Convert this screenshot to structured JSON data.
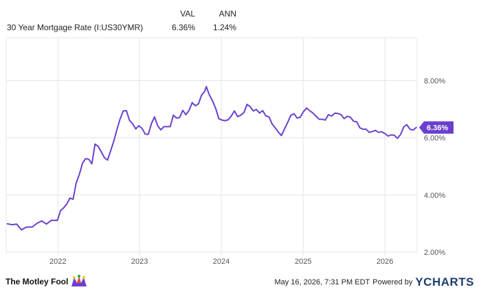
{
  "header": {
    "col_val": "VAL",
    "col_ann": "ANN",
    "series_label": "30 Year Mortgage Rate (I:US30YMR)",
    "val": "6.36%",
    "ann": "1.24%"
  },
  "footer": {
    "brand": "The Motley Fool",
    "timestamp": "May 16, 2026, 7:31 PM EDT",
    "powered_by": "Powered by",
    "ycharts": "YCHARTS"
  },
  "colors": {
    "line": "#6a3fcf",
    "grid": "#e3e3e3",
    "badge": "#6a3fcf"
  },
  "chart_data": {
    "type": "line",
    "title": "30 Year Mortgage Rate (I:US30YMR)",
    "x_ticks": [
      "2022",
      "2023",
      "2024",
      "2025",
      "2026"
    ],
    "y_ticks": [
      "2.00%",
      "4.00%",
      "6.00%",
      "8.00%"
    ],
    "ylim": [
      2.0,
      9.5
    ],
    "xlim": [
      "2021-05-15",
      "2026-05-25"
    ],
    "grid": true,
    "last_value_label": "6.36%",
    "series": [
      {
        "points": [
          [
            "2021-05-20",
            2.99
          ],
          [
            "2021-06-10",
            2.96
          ],
          [
            "2021-07-01",
            2.98
          ],
          [
            "2021-07-22",
            2.78
          ],
          [
            "2021-08-12",
            2.87
          ],
          [
            "2021-09-09",
            2.88
          ],
          [
            "2021-09-30",
            3.01
          ],
          [
            "2021-10-21",
            3.09
          ],
          [
            "2021-11-11",
            2.98
          ],
          [
            "2021-12-02",
            3.11
          ],
          [
            "2021-12-30",
            3.11
          ],
          [
            "2022-01-13",
            3.45
          ],
          [
            "2022-01-27",
            3.55
          ],
          [
            "2022-02-10",
            3.69
          ],
          [
            "2022-02-24",
            3.89
          ],
          [
            "2022-03-10",
            3.85
          ],
          [
            "2022-03-24",
            4.42
          ],
          [
            "2022-04-07",
            4.72
          ],
          [
            "2022-04-21",
            5.11
          ],
          [
            "2022-05-05",
            5.27
          ],
          [
            "2022-05-19",
            5.25
          ],
          [
            "2022-06-02",
            5.09
          ],
          [
            "2022-06-16",
            5.78
          ],
          [
            "2022-06-30",
            5.7
          ],
          [
            "2022-07-14",
            5.51
          ],
          [
            "2022-07-28",
            5.3
          ],
          [
            "2022-08-11",
            5.22
          ],
          [
            "2022-08-25",
            5.55
          ],
          [
            "2022-09-08",
            5.89
          ],
          [
            "2022-09-22",
            6.29
          ],
          [
            "2022-10-06",
            6.66
          ],
          [
            "2022-10-20",
            6.94
          ],
          [
            "2022-11-03",
            6.95
          ],
          [
            "2022-11-17",
            6.61
          ],
          [
            "2022-12-01",
            6.49
          ],
          [
            "2022-12-15",
            6.31
          ],
          [
            "2022-12-29",
            6.42
          ],
          [
            "2023-01-12",
            6.33
          ],
          [
            "2023-01-26",
            6.13
          ],
          [
            "2023-02-09",
            6.12
          ],
          [
            "2023-02-23",
            6.5
          ],
          [
            "2023-03-09",
            6.73
          ],
          [
            "2023-03-23",
            6.42
          ],
          [
            "2023-04-06",
            6.28
          ],
          [
            "2023-04-20",
            6.39
          ],
          [
            "2023-05-04",
            6.39
          ],
          [
            "2023-05-18",
            6.39
          ],
          [
            "2023-06-01",
            6.79
          ],
          [
            "2023-06-15",
            6.69
          ],
          [
            "2023-06-29",
            6.71
          ],
          [
            "2023-07-13",
            6.96
          ],
          [
            "2023-07-27",
            6.81
          ],
          [
            "2023-08-10",
            6.96
          ],
          [
            "2023-08-24",
            7.23
          ],
          [
            "2023-09-07",
            7.12
          ],
          [
            "2023-09-21",
            7.19
          ],
          [
            "2023-10-05",
            7.49
          ],
          [
            "2023-10-19",
            7.63
          ],
          [
            "2023-10-26",
            7.79
          ],
          [
            "2023-11-09",
            7.5
          ],
          [
            "2023-11-23",
            7.29
          ],
          [
            "2023-12-07",
            7.03
          ],
          [
            "2023-12-21",
            6.67
          ],
          [
            "2024-01-04",
            6.62
          ],
          [
            "2024-01-18",
            6.6
          ],
          [
            "2024-02-01",
            6.63
          ],
          [
            "2024-02-15",
            6.77
          ],
          [
            "2024-02-29",
            6.94
          ],
          [
            "2024-03-14",
            6.74
          ],
          [
            "2024-03-28",
            6.79
          ],
          [
            "2024-04-11",
            6.88
          ],
          [
            "2024-04-25",
            7.17
          ],
          [
            "2024-05-09",
            7.09
          ],
          [
            "2024-05-23",
            6.94
          ],
          [
            "2024-06-06",
            6.99
          ],
          [
            "2024-06-20",
            6.87
          ],
          [
            "2024-07-04",
            6.95
          ],
          [
            "2024-07-18",
            6.77
          ],
          [
            "2024-08-01",
            6.73
          ],
          [
            "2024-08-15",
            6.49
          ],
          [
            "2024-08-29",
            6.35
          ],
          [
            "2024-09-12",
            6.2
          ],
          [
            "2024-09-26",
            6.08
          ],
          [
            "2024-10-10",
            6.32
          ],
          [
            "2024-10-24",
            6.54
          ],
          [
            "2024-11-07",
            6.79
          ],
          [
            "2024-11-21",
            6.84
          ],
          [
            "2024-12-05",
            6.69
          ],
          [
            "2024-12-19",
            6.72
          ],
          [
            "2025-01-02",
            6.91
          ],
          [
            "2025-01-16",
            7.04
          ],
          [
            "2025-01-30",
            6.95
          ],
          [
            "2025-02-13",
            6.87
          ],
          [
            "2025-02-27",
            6.76
          ],
          [
            "2025-03-13",
            6.65
          ],
          [
            "2025-03-27",
            6.65
          ],
          [
            "2025-04-10",
            6.62
          ],
          [
            "2025-04-24",
            6.81
          ],
          [
            "2025-05-08",
            6.76
          ],
          [
            "2025-05-22",
            6.86
          ],
          [
            "2025-06-05",
            6.85
          ],
          [
            "2025-06-19",
            6.81
          ],
          [
            "2025-07-03",
            6.67
          ],
          [
            "2025-07-17",
            6.75
          ],
          [
            "2025-07-31",
            6.72
          ],
          [
            "2025-08-14",
            6.58
          ],
          [
            "2025-08-28",
            6.56
          ],
          [
            "2025-09-11",
            6.35
          ],
          [
            "2025-09-25",
            6.3
          ],
          [
            "2025-10-09",
            6.3
          ],
          [
            "2025-10-23",
            6.19
          ],
          [
            "2025-11-06",
            6.22
          ],
          [
            "2025-11-20",
            6.26
          ],
          [
            "2025-12-04",
            6.19
          ],
          [
            "2025-12-18",
            6.21
          ],
          [
            "2026-01-01",
            6.15
          ],
          [
            "2026-01-15",
            6.06
          ],
          [
            "2026-01-29",
            6.1
          ],
          [
            "2026-02-12",
            6.09
          ],
          [
            "2026-02-26",
            5.98
          ],
          [
            "2026-03-12",
            6.11
          ],
          [
            "2026-03-26",
            6.38
          ],
          [
            "2026-04-09",
            6.46
          ],
          [
            "2026-04-23",
            6.3
          ],
          [
            "2026-05-07",
            6.27
          ],
          [
            "2026-05-21",
            6.36
          ]
        ]
      }
    ]
  }
}
